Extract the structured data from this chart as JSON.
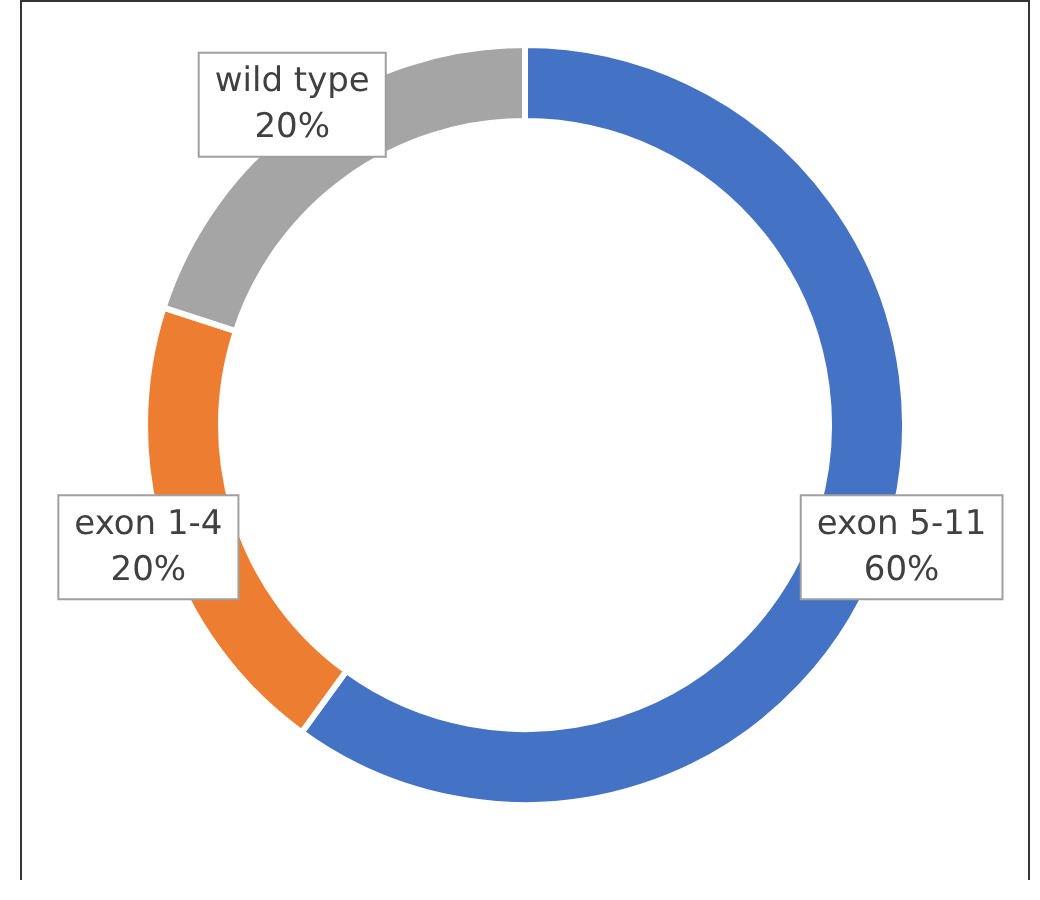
{
  "chart_data": {
    "type": "donut",
    "categories": [
      "exon 5-11",
      "exon 1-4",
      "wild type"
    ],
    "values": [
      60,
      20,
      20
    ],
    "colors": [
      "#4472c4",
      "#ed7d31",
      "#a5a5a5"
    ],
    "value_labels": [
      "60%",
      "20%",
      "20%"
    ],
    "legend": false
  }
}
